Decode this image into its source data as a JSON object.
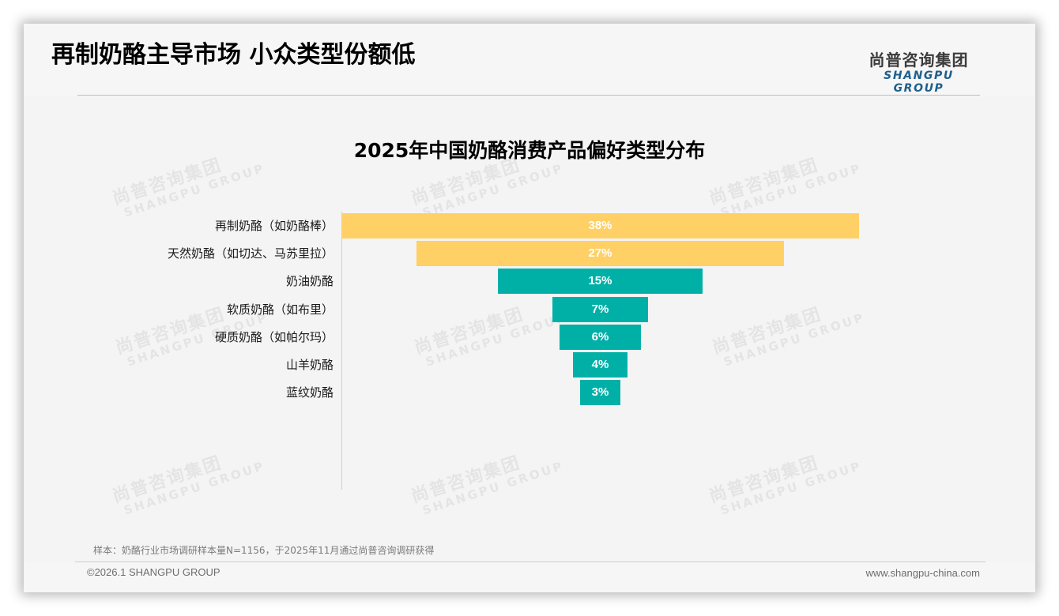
{
  "header": {
    "title": "再制奶酪主导市场 小众类型份额低",
    "logo_cn": "尚普咨询集团",
    "logo_en": "SHANGPU GROUP"
  },
  "watermark": {
    "cn": "尚普咨询集团",
    "en": "SHANGPU GROUP"
  },
  "colors": {
    "highlight": "#ffd066",
    "primary": "#00b0a7",
    "background": "#f4f4f4",
    "logo_en": "#1f5f8b"
  },
  "chart_data": {
    "type": "bar",
    "orientation": "horizontal-funnel",
    "title": "2025年中国奶酪消费产品偏好类型分布",
    "xlabel": "",
    "ylabel": "",
    "unit": "%",
    "grid": false,
    "legend": null,
    "categories": [
      "再制奶酪（如奶酪棒）",
      "天然奶酪（如切达、马苏里拉）",
      "奶油奶酪",
      "软质奶酪（如布里）",
      "硬质奶酪（如帕尔玛）",
      "山羊奶酪",
      "蓝纹奶酪"
    ],
    "values": [
      38,
      27,
      15,
      7,
      6,
      4,
      3
    ],
    "labels": [
      "38%",
      "27%",
      "15%",
      "7%",
      "6%",
      "4%",
      "3%"
    ],
    "bar_colors": [
      "#ffd066",
      "#ffd066",
      "#00b0a7",
      "#00b0a7",
      "#00b0a7",
      "#00b0a7",
      "#00b0a7"
    ]
  },
  "footer": {
    "source_note": "样本：奶酪行业市场调研样本量N=1156，于2025年11月通过尚普咨询调研获得",
    "copyright": "©2026.1 SHANGPU GROUP",
    "website": "www.shangpu-china.com"
  }
}
